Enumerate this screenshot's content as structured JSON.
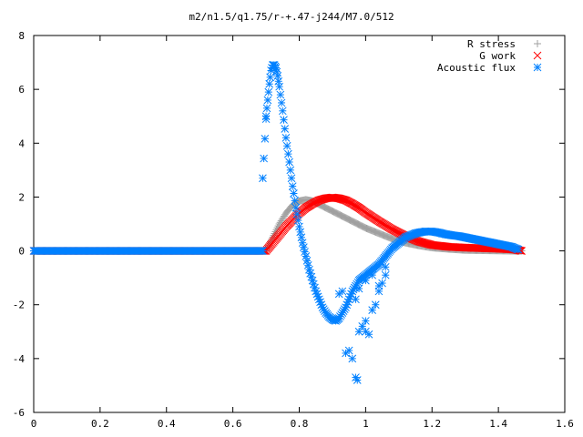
{
  "chart_data": {
    "type": "scatter",
    "title": "m2/n1.5/q1.75/r-+.47-j244/M7.0/512",
    "xlabel": "",
    "ylabel": "",
    "xlim": [
      0,
      1.6
    ],
    "ylim": [
      -6,
      8
    ],
    "x_ticks": [
      "0",
      "0.2",
      "0.4",
      "0.6",
      "0.8",
      "1",
      "1.2",
      "1.4",
      "1.6"
    ],
    "y_ticks": [
      "8",
      "6",
      "4",
      "2",
      "0",
      "-2",
      "-4",
      "-6"
    ],
    "grid": false,
    "legend_position": "top-right",
    "series": [
      {
        "name": "R stress",
        "marker": "plus",
        "color": "#a0a0a0",
        "x": [
          0.0,
          0.7,
          0.72,
          0.74,
          0.76,
          0.78,
          0.8,
          0.82,
          0.84,
          0.88,
          0.92,
          0.96,
          1.0,
          1.04,
          1.08,
          1.12,
          1.16,
          1.2,
          1.25,
          1.3,
          1.35,
          1.4,
          1.45,
          1.47
        ],
        "y": [
          0.0,
          0.0,
          0.5,
          1.0,
          1.4,
          1.7,
          1.85,
          1.9,
          1.85,
          1.6,
          1.35,
          1.1,
          0.85,
          0.65,
          0.45,
          0.3,
          0.2,
          0.12,
          0.07,
          0.03,
          0.02,
          0.01,
          0.0,
          0.0
        ]
      },
      {
        "name": "G work",
        "marker": "cross",
        "color": "#ff0000",
        "x": [
          0.0,
          0.7,
          0.72,
          0.74,
          0.76,
          0.78,
          0.8,
          0.82,
          0.84,
          0.86,
          0.88,
          0.9,
          0.92,
          0.94,
          0.96,
          0.98,
          1.0,
          1.04,
          1.08,
          1.12,
          1.16,
          1.2,
          1.25,
          1.3,
          1.35,
          1.4,
          1.45,
          1.47
        ],
        "y": [
          0.0,
          0.0,
          0.3,
          0.6,
          0.9,
          1.15,
          1.4,
          1.6,
          1.75,
          1.88,
          1.95,
          1.98,
          1.95,
          1.88,
          1.75,
          1.6,
          1.42,
          1.1,
          0.8,
          0.55,
          0.35,
          0.22,
          0.15,
          0.12,
          0.1,
          0.08,
          0.05,
          0.0
        ]
      },
      {
        "name": "Acoustic flux",
        "marker": "star",
        "color": "#0080ff",
        "x": [
          0.0,
          0.69,
          0.69,
          0.7,
          0.7,
          0.705,
          0.71,
          0.715,
          0.72,
          0.725,
          0.73,
          0.735,
          0.74,
          0.75,
          0.76,
          0.77,
          0.78,
          0.79,
          0.8,
          0.81,
          0.82,
          0.83,
          0.84,
          0.85,
          0.86,
          0.87,
          0.88,
          0.89,
          0.9,
          0.91,
          0.92,
          0.93,
          0.94,
          0.95,
          0.96,
          0.97,
          0.98,
          0.99,
          1.0,
          1.01,
          1.02,
          1.03,
          1.04,
          1.05,
          1.06,
          1.07,
          1.08,
          1.09,
          1.1,
          1.11,
          1.12,
          1.13,
          1.14,
          1.15,
          1.16,
          1.17,
          1.18,
          1.19,
          1.2,
          1.21,
          1.22,
          1.23,
          1.24,
          1.26,
          1.28,
          1.3,
          1.32,
          1.34,
          1.36,
          1.38,
          1.4,
          1.42,
          1.44,
          1.45,
          1.46,
          0.94,
          0.95,
          0.96,
          0.97,
          0.975,
          0.98,
          0.99,
          1.0,
          1.0,
          1.01,
          1.02,
          1.03,
          1.04,
          1.05,
          1.06,
          0.93,
          0.92,
          0.97,
          0.98,
          1.0,
          1.02,
          1.04,
          1.06
        ],
        "y": [
          0.0,
          0.0,
          2.7,
          4.9,
          5.0,
          5.6,
          6.2,
          6.7,
          6.9,
          6.9,
          6.8,
          6.5,
          6.1,
          5.2,
          4.2,
          3.3,
          2.4,
          1.6,
          0.9,
          0.3,
          -0.2,
          -0.7,
          -1.1,
          -1.5,
          -1.8,
          -2.1,
          -2.3,
          -2.45,
          -2.55,
          -2.6,
          -2.5,
          -2.3,
          -2.1,
          -1.8,
          -1.5,
          -1.3,
          -1.1,
          -1.0,
          -0.9,
          -0.8,
          -0.7,
          -0.6,
          -0.5,
          -0.35,
          -0.2,
          -0.05,
          0.1,
          0.2,
          0.3,
          0.4,
          0.5,
          0.55,
          0.6,
          0.65,
          0.68,
          0.7,
          0.72,
          0.72,
          0.72,
          0.7,
          0.68,
          0.65,
          0.62,
          0.58,
          0.55,
          0.5,
          0.45,
          0.4,
          0.35,
          0.3,
          0.25,
          0.2,
          0.15,
          0.1,
          0.05,
          -3.8,
          -3.7,
          -4.0,
          -4.7,
          -4.8,
          -3.0,
          -2.8,
          -2.6,
          -3.0,
          -3.1,
          -2.2,
          -2.0,
          -1.5,
          -1.2,
          -0.9,
          -1.5,
          -1.6,
          -1.8,
          -1.4,
          -1.1,
          -0.9,
          -1.3,
          -0.6
        ]
      }
    ]
  }
}
